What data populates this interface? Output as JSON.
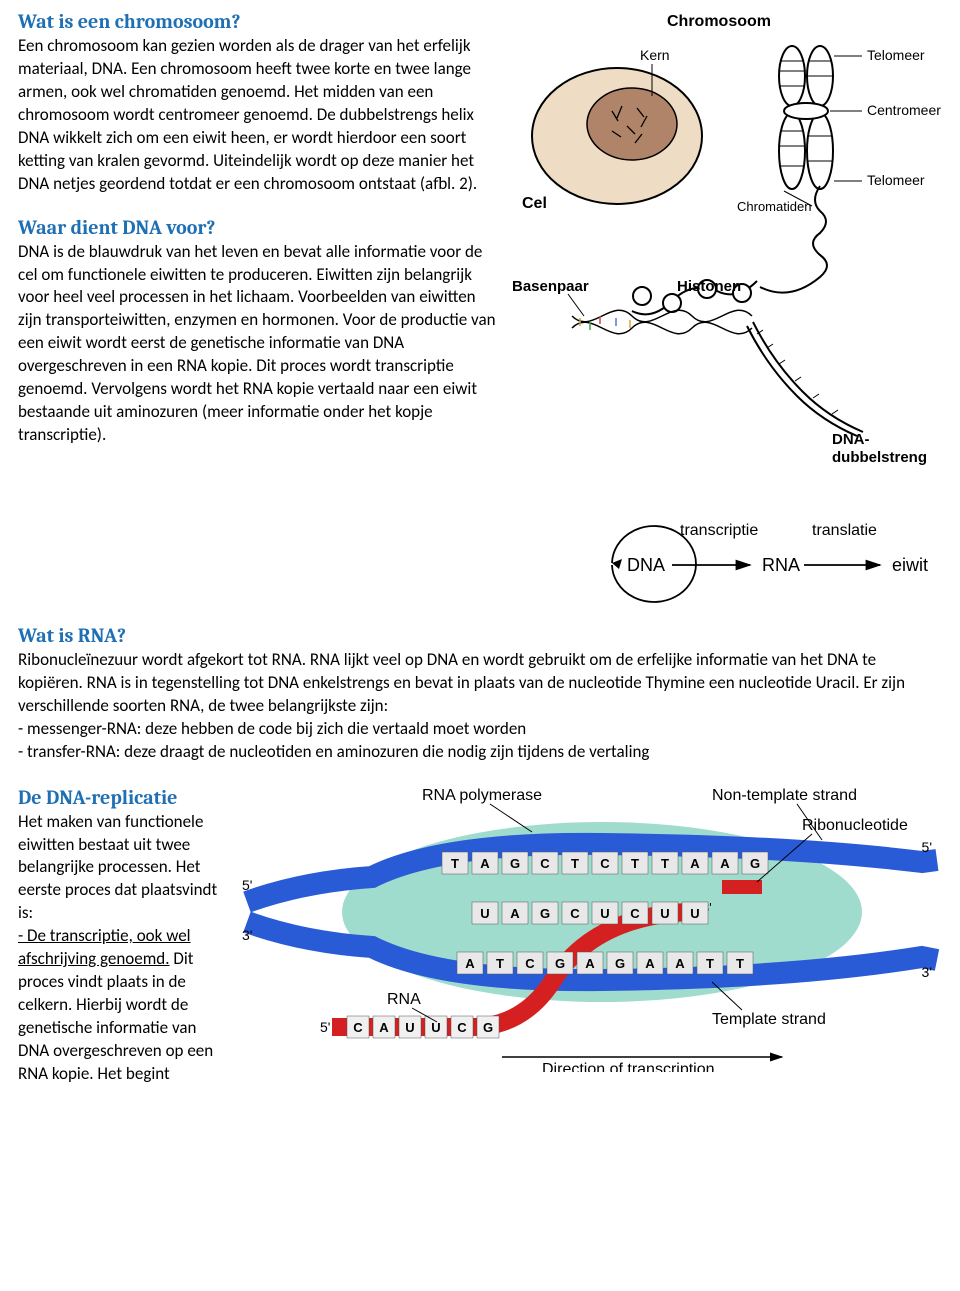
{
  "section1": {
    "heading": "Wat is een chromosoom?",
    "body": "Een chromosoom kan gezien worden als de drager van het erfelijk materiaal, DNA. Een chromosoom heeft twee korte en twee lange armen, ook wel chromatiden genoemd. Het midden van een chromosoom wordt centromeer genoemd. De dubbelstrengs helix DNA wikkelt zich om een eiwit heen, er wordt hierdoor een soort ketting van kralen gevormd. Uiteindelijk wordt op deze manier het DNA netjes geordend totdat er een chromosoom ontstaat (afbl. 2)."
  },
  "section2": {
    "heading": "Waar dient DNA voor?",
    "body": "DNA is de blauwdruk van het leven en bevat alle informatie voor de cel om functionele eiwitten te produceren. Eiwitten zijn belangrijk voor heel veel processen in het lichaam. Voorbeelden van eiwitten zijn transporteiwitten, enzymen en hormonen. Voor de productie van een eiwit wordt eerst de genetische informatie van DNA overgeschreven in een RNA kopie. Dit proces wordt transcriptie genoemd. Vervolgens wordt het RNA kopie vertaald naar een eiwit bestaande uit aminozuren (meer informatie onder het kopje transcriptie)."
  },
  "section3": {
    "heading": "Wat is RNA?",
    "body1": "Ribonucleïnezuur wordt afgekort tot RNA. RNA lijkt veel op DNA en wordt gebruikt om de erfelijke informatie van het DNA te kopiëren. RNA is in tegenstelling tot DNA enkelstrengs en bevat in plaats van de nucleotide Thymine een nucleotide Uracil. Er zijn verschillende soorten RNA, de twee belangrijkste zijn:",
    "bullet1": "- messenger-RNA: deze hebben de code bij zich die vertaald moet worden",
    "bullet2": "- transfer-RNA: deze draagt de nucleotiden en aminozuren die nodig zijn tijdens de vertaling"
  },
  "section4": {
    "heading": "De DNA-replicatie",
    "body_pre": "Het maken van functionele eiwitten bestaat uit twee belangrijke processen. Het eerste proces dat plaatsvindt is:",
    "body_underline": "- De transcriptie, ook wel afschrijving genoemd.",
    "body_post": " Dit proces vindt plaats in de celkern. Hierbij wordt de genetische informatie van DNA overgeschreven op een RNA kopie. Het begint"
  },
  "diagram1": {
    "labels": {
      "chromosoom": "Chromosoom",
      "kern": "Kern",
      "telomeer": "Telomeer",
      "centromeer": "Centromeer",
      "cel": "Cel",
      "chromatiden": "Chromatiden",
      "basenpaar": "Basenpaar",
      "histonen": "Histonen",
      "dna_dubbel": "DNA-\ndubbelstreng"
    },
    "colors": {
      "cell_fill": "#efdcc4",
      "nucleus_fill": "#b08468",
      "stroke": "#000000"
    }
  },
  "diagram2": {
    "dna": "DNA",
    "rna": "RNA",
    "eiwit": "eiwit",
    "transcriptie": "transcriptie",
    "translatie": "translatie",
    "arrow_color": "#000000",
    "font_size": 18
  },
  "diagram3": {
    "rna_polymerase": "RNA polymerase",
    "non_template": "Non-template strand",
    "ribonucleotide": "Ribonucleotide",
    "rna": "RNA",
    "template": "Template strand",
    "direction": "Direction of transcription",
    "five_prime": "5'",
    "three_prime": "3'",
    "colors": {
      "polymerase": "#8fd6c4",
      "dna_strand": "#2a5bd7",
      "rna_strand": "#d42020",
      "base_bg": "#e8e8e8"
    },
    "top_bases": [
      "T",
      "A",
      "G",
      "C",
      "T",
      "C",
      "T",
      "T",
      "A",
      "A",
      "G"
    ],
    "mid_bases": [
      "U",
      "A",
      "G",
      "C",
      "U",
      "C",
      "U",
      "U"
    ],
    "bot_bases": [
      "A",
      "T",
      "C",
      "G",
      "A",
      "G",
      "A",
      "A",
      "T",
      "T"
    ],
    "rna_tail": [
      "C",
      "A",
      "U",
      "U",
      "C",
      "G"
    ]
  }
}
